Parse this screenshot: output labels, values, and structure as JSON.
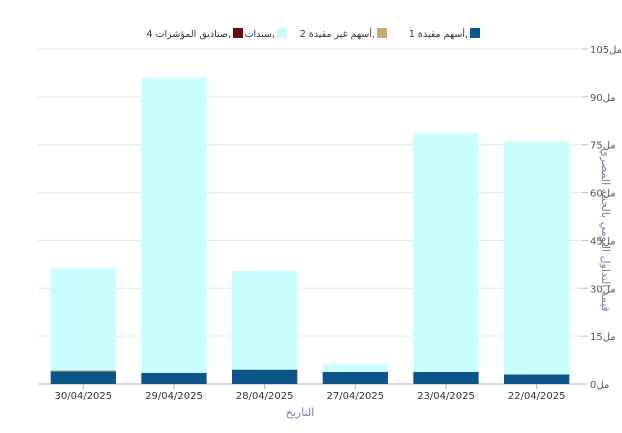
{
  "chart_data": {
    "type": "bar",
    "stacked": true,
    "categories": [
      "30/04/2025",
      "29/04/2025",
      "28/04/2025",
      "27/04/2025",
      "23/04/2025",
      "22/04/2025"
    ],
    "series": [
      {
        "name": "أسهم مقيدة 1,",
        "color": "#0d5488",
        "values": [
          4,
          3.5,
          4.5,
          3.8,
          3.8,
          3
        ]
      },
      {
        "name": "أسهم غير مقيدة 2,",
        "color": "#c8a96e",
        "values": [
          0.3,
          0,
          0,
          0,
          0,
          0
        ]
      },
      {
        "name": "سندات 3,",
        "color": "#ccfdfd",
        "values": [
          32,
          92.5,
          31,
          2.5,
          75,
          73
        ]
      },
      {
        "name": "صناديق المؤشرات 4,",
        "color": "#6b0b0b",
        "values": [
          0,
          0,
          0,
          0,
          0,
          0
        ]
      }
    ],
    "y_ticks": [
      "0مل",
      "15مل",
      "30مل",
      "45مل",
      "60مل",
      "75مل",
      "90مل",
      "105مل"
    ],
    "ylim": [
      0,
      105
    ],
    "y_step": 15,
    "ylabel": "قيمة التداول اليومي بالجنيه المصري",
    "xlabel": "التاريخ",
    "title": "",
    "grid": true,
    "legend_position": "top",
    "axis_position": "right"
  }
}
